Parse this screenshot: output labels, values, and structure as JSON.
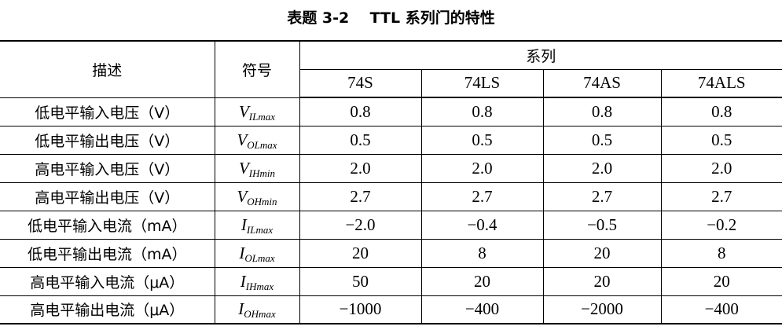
{
  "caption": "表题 3-2    TTL 系列门的特性",
  "header": {
    "desc": "描述",
    "symbol": "符号",
    "series": "系列",
    "families": [
      "74S",
      "74LS",
      "74AS",
      "74ALS"
    ]
  },
  "rows": [
    {
      "desc": "低电平输入电压（V）",
      "sym_main": "V",
      "sym_sub": "ILmax",
      "values": [
        "0.8",
        "0.8",
        "0.8",
        "0.8"
      ]
    },
    {
      "desc": "低电平输出电压（V）",
      "sym_main": "V",
      "sym_sub": "OLmax",
      "values": [
        "0.5",
        "0.5",
        "0.5",
        "0.5"
      ]
    },
    {
      "desc": "高电平输入电压（V）",
      "sym_main": "V",
      "sym_sub": "IHmin",
      "values": [
        "2.0",
        "2.0",
        "2.0",
        "2.0"
      ]
    },
    {
      "desc": "高电平输出电压（V）",
      "sym_main": "V",
      "sym_sub": "OHmin",
      "values": [
        "2.7",
        "2.7",
        "2.7",
        "2.7"
      ]
    },
    {
      "desc": "低电平输入电流（mA）",
      "sym_main": "I",
      "sym_sub": "ILmax",
      "values": [
        "−2.0",
        "−0.4",
        "−0.5",
        "−0.2"
      ]
    },
    {
      "desc": "低电平输出电流（mA）",
      "sym_main": "I",
      "sym_sub": "OLmax",
      "values": [
        "20",
        "8",
        "20",
        "8"
      ]
    },
    {
      "desc": "高电平输入电流（μA）",
      "sym_main": "I",
      "sym_sub": "IHmax",
      "values": [
        "50",
        "20",
        "20",
        "20"
      ]
    },
    {
      "desc": "高电平输出电流（μA）",
      "sym_main": "I",
      "sym_sub": "OHmax",
      "values": [
        "−1000",
        "−400",
        "−2000",
        "−400"
      ]
    }
  ]
}
